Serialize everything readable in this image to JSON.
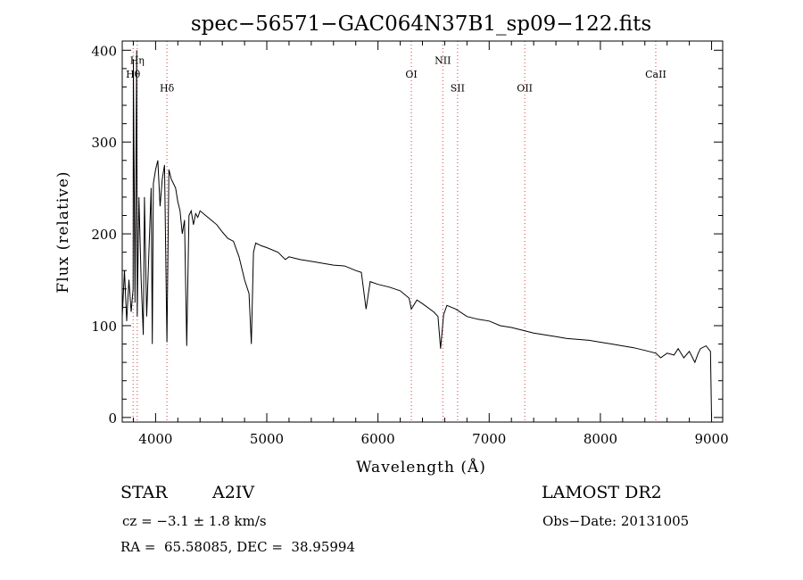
{
  "chart_data": {
    "type": "line",
    "title": "spec−56571−GAC064N37B1_sp09−122.fits",
    "xlabel": "Wavelength (Å)",
    "ylabel": "Flux (relative)",
    "xlim": [
      3700,
      9100
    ],
    "ylim": [
      -5,
      410
    ],
    "x_ticks": [
      4000,
      5000,
      6000,
      7000,
      8000,
      9000
    ],
    "y_ticks": [
      0,
      100,
      200,
      300,
      400
    ],
    "line_color": "#000000",
    "marker_color": "#d33b3b",
    "series": [
      {
        "x": [
          3700,
          3720,
          3740,
          3760,
          3780,
          3798,
          3800,
          3815,
          3830,
          3835,
          3850,
          3870,
          3889,
          3900,
          3920,
          3940,
          3960,
          3970,
          3980,
          4000,
          4020,
          4040,
          4060,
          4080,
          4102,
          4120,
          4140,
          4160,
          4180,
          4200,
          4220,
          4240,
          4260,
          4280,
          4300,
          4320,
          4340,
          4360,
          4380,
          4400,
          4450,
          4500,
          4550,
          4600,
          4650,
          4700,
          4750,
          4800,
          4840,
          4861,
          4880,
          4900,
          4950,
          5000,
          5100,
          5167,
          5200,
          5300,
          5400,
          5500,
          5600,
          5700,
          5800,
          5850,
          5893,
          5930,
          6000,
          6100,
          6200,
          6280,
          6300,
          6350,
          6400,
          6500,
          6540,
          6563,
          6590,
          6620,
          6700,
          6800,
          6900,
          7000,
          7100,
          7200,
          7300,
          7400,
          7500,
          7600,
          7700,
          7800,
          7900,
          8000,
          8100,
          8200,
          8300,
          8400,
          8498,
          8542,
          8600,
          8662,
          8700,
          8750,
          8800,
          8850,
          8880,
          8900,
          8950,
          8990,
          9000
        ],
        "y": [
          110,
          160,
          105,
          150,
          115,
          140,
          390,
          125,
          400,
          110,
          240,
          150,
          90,
          240,
          110,
          180,
          250,
          80,
          255,
          270,
          280,
          230,
          260,
          275,
          82,
          270,
          260,
          255,
          250,
          235,
          225,
          200,
          215,
          78,
          220,
          225,
          210,
          222,
          218,
          225,
          220,
          215,
          210,
          202,
          195,
          192,
          175,
          150,
          135,
          80,
          180,
          190,
          187,
          185,
          180,
          172,
          175,
          172,
          170,
          168,
          166,
          165,
          160,
          158,
          118,
          148,
          145,
          142,
          138,
          130,
          118,
          128,
          124,
          115,
          110,
          75,
          112,
          122,
          118,
          110,
          107,
          105,
          100,
          98,
          95,
          92,
          90,
          88,
          86,
          85,
          84,
          82,
          80,
          78,
          76,
          73,
          70,
          65,
          70,
          68,
          75,
          65,
          72,
          60,
          70,
          75,
          78,
          72,
          0
        ]
      }
    ],
    "line_markers": [
      {
        "label": "Hη",
        "x": 3835,
        "label_y": 385
      },
      {
        "label": "Hθ",
        "x": 3798,
        "label_y": 370
      },
      {
        "label": "Hδ",
        "x": 4102,
        "label_y": 355
      },
      {
        "label": "OI",
        "x": 6300,
        "label_y": 370
      },
      {
        "label": "NII",
        "x": 6583,
        "label_y": 385
      },
      {
        "label": "SII",
        "x": 6716,
        "label_y": 355
      },
      {
        "label": "OII",
        "x": 7320,
        "label_y": 355
      },
      {
        "label": "CaII",
        "x": 8498,
        "label_y": 370
      }
    ]
  },
  "info": {
    "object_type": "STAR",
    "subclass": "A2IV",
    "survey": "LAMOST DR2",
    "redshift": "cz = −3.1 ± 1.8 km/s",
    "obs_date": "Obs−Date: 20131005",
    "coords": "RA =  65.58085, DEC =  38.95994"
  }
}
